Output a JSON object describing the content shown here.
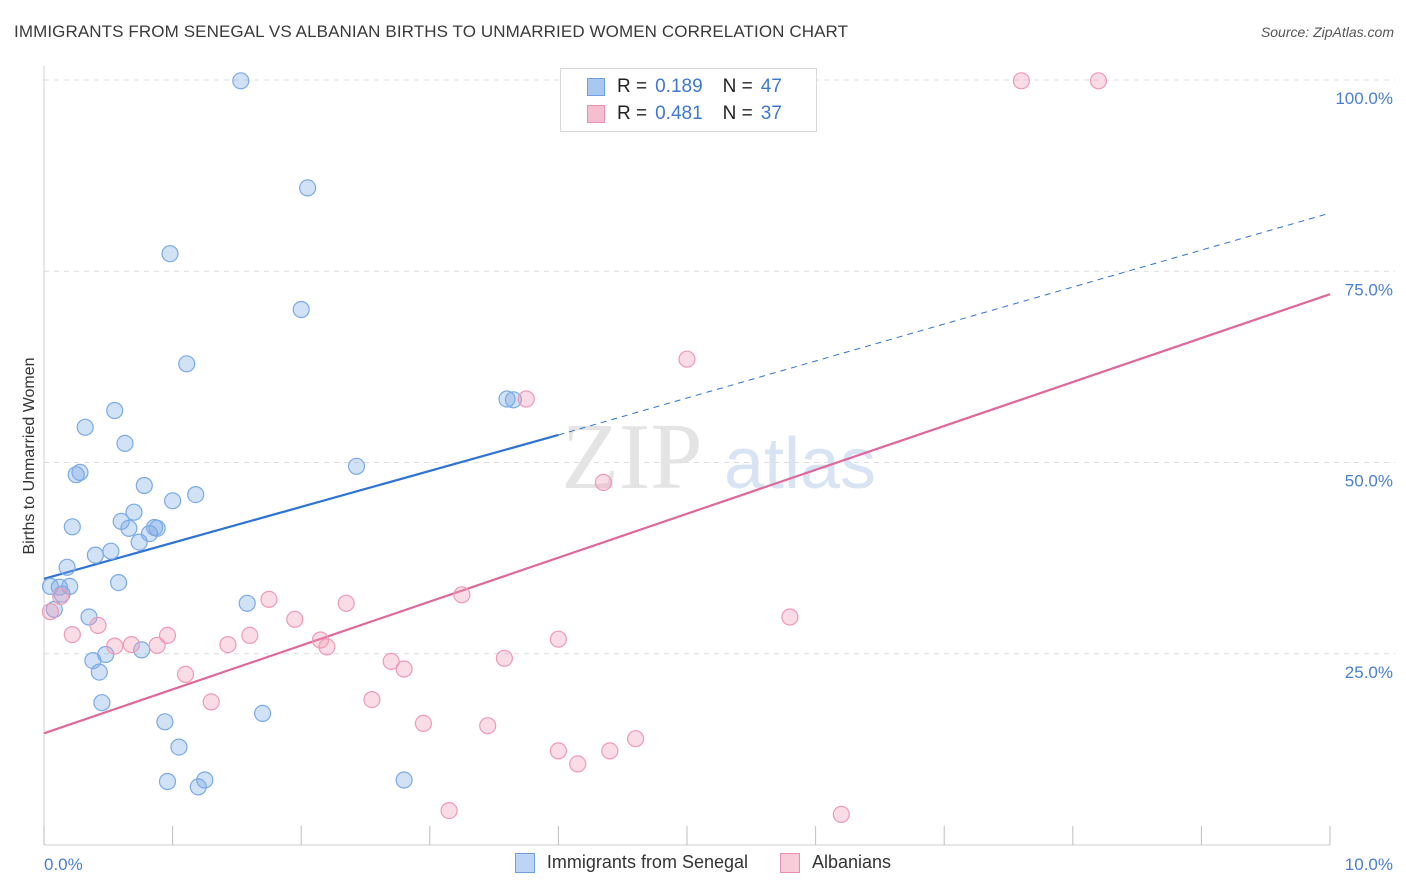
{
  "title": "IMMIGRANTS FROM SENEGAL VS ALBANIAN BIRTHS TO UNMARRIED WOMEN CORRELATION CHART",
  "source": "Source: ZipAtlas.com",
  "watermark": {
    "zip": "ZIP",
    "atlas": "atlas"
  },
  "legend": {
    "rows": [
      {
        "r_label": "R =",
        "r_value": "0.189",
        "n_label": "N =",
        "n_value": "47",
        "color": "#a9c8f0",
        "border": "#6f9fdc"
      },
      {
        "r_label": "R =",
        "r_value": "0.481",
        "n_label": "N =",
        "n_value": "37",
        "color": "#f6bfd0",
        "border": "#e890ad"
      }
    ]
  },
  "bottom_legend": [
    {
      "label": "Immigrants from Senegal",
      "color": "#bcd5f5",
      "border": "#6f9fdc"
    },
    {
      "label": "Albanians",
      "color": "#f9ccda",
      "border": "#e890ad"
    }
  ],
  "chart_data": {
    "type": "scatter",
    "title": "IMMIGRANTS FROM SENEGAL VS ALBANIAN BIRTHS TO UNMARRIED WOMEN CORRELATION CHART",
    "xlabel": "",
    "ylabel": "Births to Unmarried Women",
    "xlim": [
      0,
      10
    ],
    "ylim": [
      0,
      100
    ],
    "x_tick_labels": [
      "0.0%",
      "10.0%"
    ],
    "y_tick_labels": [
      "25.0%",
      "50.0%",
      "75.0%",
      "100.0%"
    ],
    "y_ticks": [
      25,
      50,
      75,
      100
    ],
    "grid": true,
    "legend_position": "top-center",
    "series": [
      {
        "name": "Immigrants from Senegal",
        "color": "#7aaae6",
        "trend": {
          "x0": 0,
          "y0": 34.8,
          "x1": 4,
          "y1": 53.6,
          "dashed_to_x": 10,
          "dashed_to_y": 82.6,
          "color": "#2f73d6"
        },
        "points": [
          [
            0.05,
            33.8
          ],
          [
            0.08,
            30.8
          ],
          [
            0.12,
            33.7
          ],
          [
            0.14,
            32.8
          ],
          [
            0.18,
            36.3
          ],
          [
            0.2,
            33.8
          ],
          [
            0.22,
            41.6
          ],
          [
            0.25,
            48.4
          ],
          [
            0.28,
            48.7
          ],
          [
            0.32,
            54.6
          ],
          [
            0.35,
            29.8
          ],
          [
            0.38,
            24.1
          ],
          [
            0.4,
            37.9
          ],
          [
            0.43,
            22.6
          ],
          [
            0.45,
            18.6
          ],
          [
            0.48,
            24.9
          ],
          [
            0.52,
            38.4
          ],
          [
            0.55,
            56.8
          ],
          [
            0.58,
            34.3
          ],
          [
            0.6,
            42.3
          ],
          [
            0.63,
            52.5
          ],
          [
            0.66,
            41.4
          ],
          [
            0.7,
            43.5
          ],
          [
            0.74,
            39.6
          ],
          [
            0.76,
            25.5
          ],
          [
            0.78,
            47.0
          ],
          [
            0.82,
            40.7
          ],
          [
            0.86,
            41.5
          ],
          [
            0.88,
            41.4
          ],
          [
            0.94,
            16.1
          ],
          [
            0.96,
            8.3
          ],
          [
            0.98,
            77.3
          ],
          [
            1.0,
            45.0
          ],
          [
            1.05,
            12.8
          ],
          [
            1.11,
            62.9
          ],
          [
            1.18,
            45.8
          ],
          [
            1.2,
            7.6
          ],
          [
            1.25,
            8.5
          ],
          [
            1.53,
            99.9
          ],
          [
            1.58,
            31.6
          ],
          [
            1.7,
            17.2
          ],
          [
            2.05,
            85.9
          ],
          [
            2.0,
            70.0
          ],
          [
            2.43,
            49.5
          ],
          [
            2.8,
            8.5
          ],
          [
            3.6,
            58.3
          ],
          [
            3.65,
            58.2
          ]
        ]
      },
      {
        "name": "Albanians",
        "color": "#ee9ab5",
        "trend": {
          "x0": 0,
          "y0": 14.6,
          "x1": 10,
          "y1": 72.0,
          "color": "#e0679a"
        },
        "points": [
          [
            0.05,
            30.5
          ],
          [
            0.13,
            32.5
          ],
          [
            0.22,
            27.5
          ],
          [
            0.42,
            28.7
          ],
          [
            0.55,
            26.0
          ],
          [
            0.68,
            26.2
          ],
          [
            0.88,
            26.1
          ],
          [
            0.96,
            27.4
          ],
          [
            1.1,
            22.3
          ],
          [
            1.3,
            18.7
          ],
          [
            1.43,
            26.2
          ],
          [
            1.6,
            27.4
          ],
          [
            1.75,
            32.1
          ],
          [
            1.95,
            29.5
          ],
          [
            2.15,
            26.8
          ],
          [
            2.2,
            25.9
          ],
          [
            2.35,
            31.6
          ],
          [
            2.55,
            19.0
          ],
          [
            2.7,
            24.0
          ],
          [
            2.8,
            23.0
          ],
          [
            2.95,
            15.9
          ],
          [
            3.15,
            4.5
          ],
          [
            3.25,
            32.7
          ],
          [
            3.45,
            15.6
          ],
          [
            3.58,
            24.4
          ],
          [
            3.75,
            58.3
          ],
          [
            4.0,
            26.9
          ],
          [
            4.0,
            12.3
          ],
          [
            4.15,
            10.6
          ],
          [
            4.35,
            47.4
          ],
          [
            4.4,
            12.3
          ],
          [
            4.6,
            13.9
          ],
          [
            5.0,
            63.5
          ],
          [
            5.8,
            29.8
          ],
          [
            6.2,
            4.0
          ],
          [
            7.6,
            99.9
          ],
          [
            8.2,
            99.9
          ]
        ]
      }
    ]
  }
}
